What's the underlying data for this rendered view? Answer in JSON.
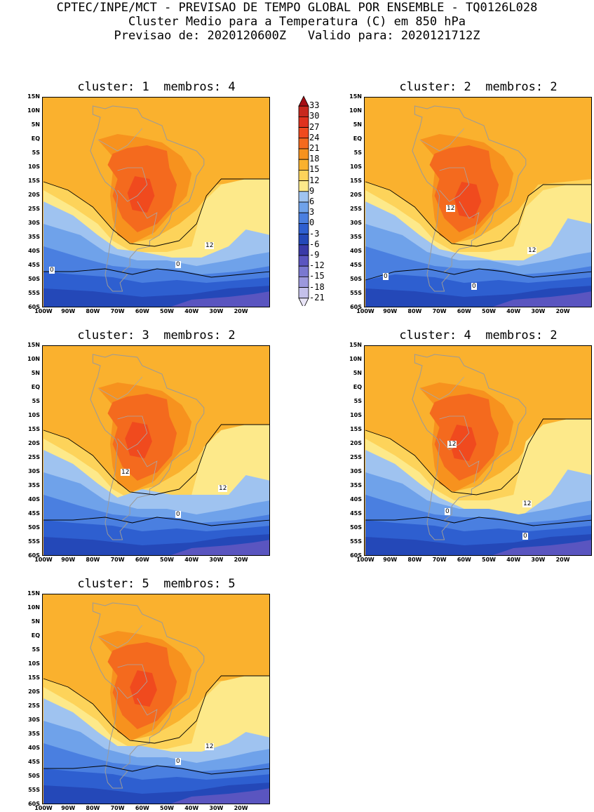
{
  "header": {
    "line1": "CPTEC/INPE/MCT - PREVISAO DE TEMPO GLOBAL POR ENSEMBLE - TQ0126L028",
    "line2": "Cluster Medio para a Temperatura (C) em 850 hPa",
    "line3": "Previsao de: 2020120600Z   Valido para: 2020121712Z"
  },
  "panels": [
    {
      "title": "cluster: 1  membros: 4",
      "contour_labels": [
        "12",
        "0",
        "0"
      ]
    },
    {
      "title": "cluster: 2  membros: 2",
      "contour_labels": [
        "12",
        "12",
        "0",
        "0"
      ]
    },
    {
      "title": "cluster: 3  membros: 2",
      "contour_labels": [
        "12",
        "12",
        "0"
      ]
    },
    {
      "title": "cluster: 4  membros: 2",
      "contour_labels": [
        "12",
        "12",
        "0",
        "0"
      ]
    },
    {
      "title": "cluster: 5  membros: 5",
      "contour_labels": [
        "12",
        "0"
      ]
    }
  ],
  "lat_labels": [
    "15N",
    "10N",
    "5N",
    "EQ",
    "5S",
    "10S",
    "15S",
    "20S",
    "25S",
    "30S",
    "35S",
    "40S",
    "45S",
    "50S",
    "55S",
    "60S"
  ],
  "lon_labels": [
    "100W",
    "90W",
    "80W",
    "70W",
    "60W",
    "50W",
    "40W",
    "30W",
    "20W"
  ],
  "colorbar": {
    "labels": [
      "33",
      "30",
      "27",
      "24",
      "21",
      "18",
      "15",
      "12",
      "9",
      "6",
      "3",
      "0",
      "-3",
      "-6",
      "-9",
      "-12",
      "-15",
      "-18",
      "-21"
    ],
    "colors": [
      "#a50f15",
      "#c8281e",
      "#e0321e",
      "#f04a1e",
      "#f46a1e",
      "#f7921e",
      "#fab12e",
      "#fdd35a",
      "#fde98a",
      "#9fc3f0",
      "#6fa2ea",
      "#4a7fe0",
      "#2e5fd0",
      "#2448b8",
      "#3a3aa8",
      "#5a55c0",
      "#7a78d0",
      "#9c98dc",
      "#c4c0ea",
      "#e8e4f6"
    ]
  }
}
